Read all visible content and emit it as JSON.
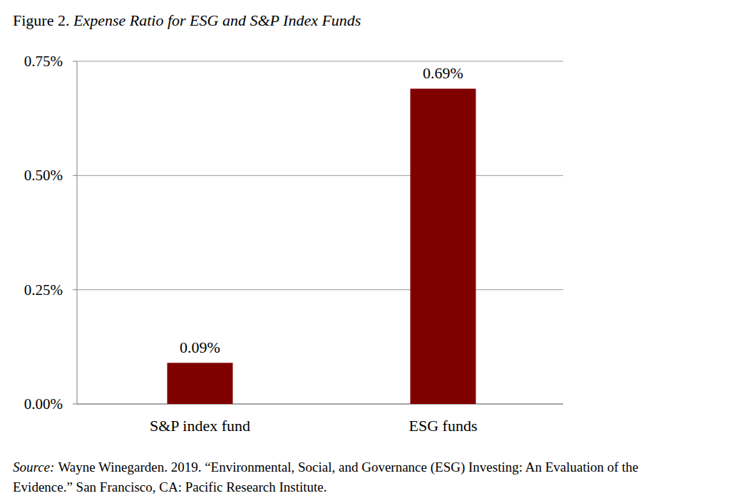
{
  "chart_data": {
    "type": "bar",
    "figure_label": "Figure 2.",
    "title": "Expense Ratio for ESG and S&P Index Funds",
    "categories": [
      "S&P index fund",
      "ESG funds"
    ],
    "values": [
      0.09,
      0.69
    ],
    "value_labels": [
      "0.09%",
      "0.69%"
    ],
    "data_labels": true,
    "color": "#800000",
    "ylim": [
      0,
      0.75
    ],
    "yticks": [
      {
        "value": 0,
        "label": "0.00%"
      },
      {
        "value": 0.25,
        "label": "0.25%"
      },
      {
        "value": 0.5,
        "label": "0.50%"
      },
      {
        "value": 0.75,
        "label": "0.75%"
      }
    ],
    "grid": true,
    "source_label": "Source:",
    "source": [
      "Wayne Winegarden. 2019. “Environmental, Social, and Governance (ESG) Investing: An Evaluation of the",
      "Evidence.” San Francisco, CA: Pacific Research Institute."
    ]
  }
}
